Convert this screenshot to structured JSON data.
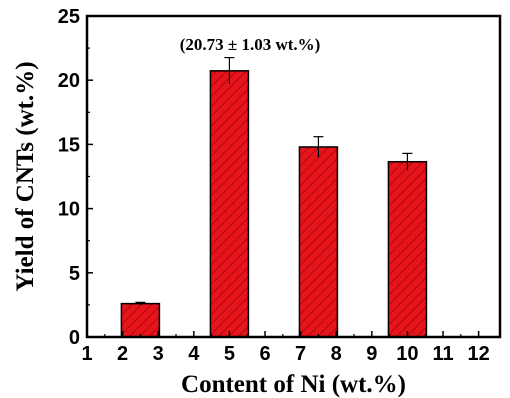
{
  "chart_data": {
    "type": "bar",
    "x": [
      2.5,
      5,
      7.5,
      10
    ],
    "values": [
      2.6,
      20.73,
      14.8,
      13.65
    ],
    "errors": [
      0.1,
      1.03,
      0.8,
      0.65
    ],
    "xlim": [
      1,
      12.6
    ],
    "ylim": [
      0,
      25
    ],
    "xticks": [
      "1",
      "2",
      "3",
      "4",
      "5",
      "6",
      "7",
      "8",
      "9",
      "10",
      "11",
      "12"
    ],
    "yticks": [
      "0",
      "5",
      "10",
      "15",
      "20",
      "25"
    ],
    "xlabel": "Content of Ni (wt.%)",
    "ylabel": "Yield of CNTs (wt.%)",
    "annotation": "(20.73 ± 1.03 wt.%)",
    "bar_color": "#e8141b",
    "hatch_color": "#a80a0f",
    "grid": false
  }
}
